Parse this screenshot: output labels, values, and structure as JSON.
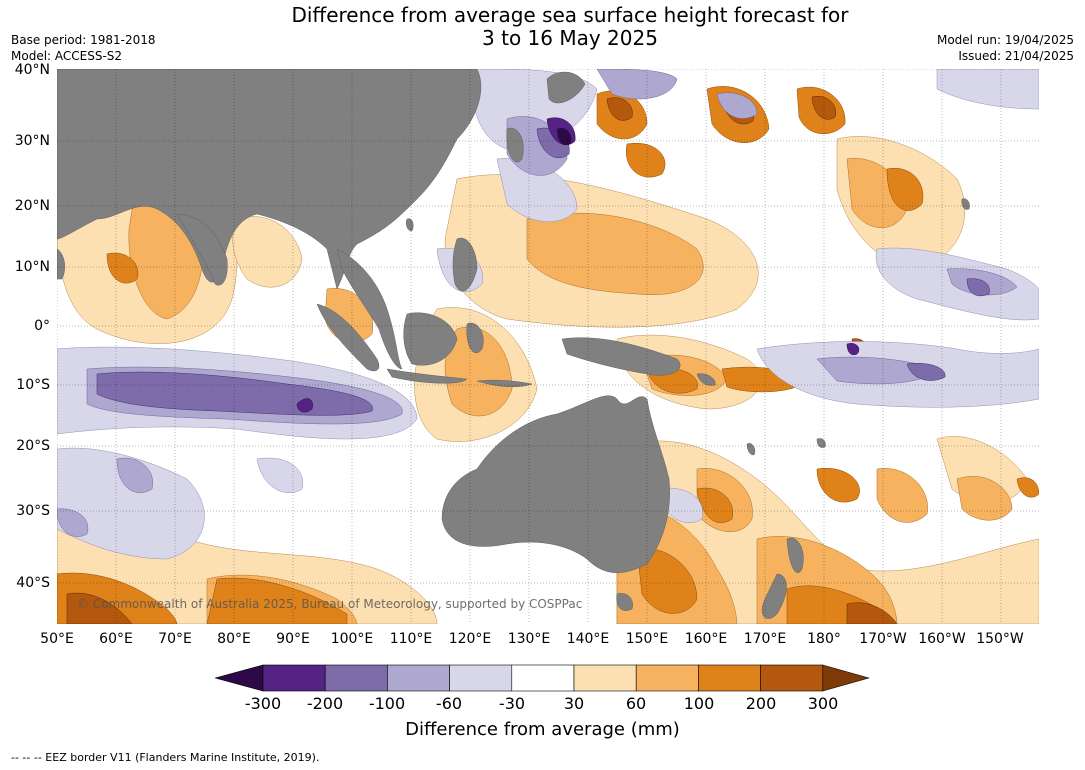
{
  "title_line1": "Difference from average sea surface height forecast for",
  "title_line2": "3 to 16 May 2025",
  "base_period": "Base period: 1981-2018",
  "model": "Model: ACCESS-S2",
  "model_run": "Model run: 19/04/2025",
  "issued": "Issued: 21/04/2025",
  "lat_labels": [
    "40°N",
    "30°N",
    "20°N",
    "10°N",
    "0°",
    "10°S",
    "20°S",
    "30°S",
    "40°S"
  ],
  "lon_labels": [
    "50°E",
    "60°E",
    "70°E",
    "80°E",
    "90°E",
    "100°E",
    "110°E",
    "120°E",
    "130°E",
    "140°E",
    "150°E",
    "160°E",
    "170°E",
    "180°",
    "170°W",
    "160°W",
    "150°W"
  ],
  "copyright": "© Commonwealth of Australia 2025, Bureau of Meteorology, supported by COSPPac",
  "colorbar": {
    "labels": [
      "-300",
      "-200",
      "-100",
      "-60",
      "-30",
      "30",
      "60",
      "100",
      "200",
      "300"
    ],
    "colors": [
      "#2d0a47",
      "#552383",
      "#7d6ca9",
      "#aea7cf",
      "#d7d7e9",
      "#ffffff",
      "#fde0b2",
      "#f6b25f",
      "#e0821a",
      "#b3580c",
      "#7e3a07"
    ],
    "title": "Difference from average (mm)"
  },
  "footnote": "--  --  -- EEZ border V11 (Flanders Marine Institute, 2019).",
  "land_color": "#808080"
}
